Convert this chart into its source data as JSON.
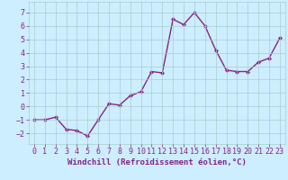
{
  "x": [
    0,
    1,
    2,
    3,
    4,
    5,
    6,
    7,
    8,
    9,
    10,
    11,
    12,
    13,
    14,
    15,
    16,
    17,
    18,
    19,
    20,
    21,
    22,
    23
  ],
  "y": [
    -1.0,
    -1.0,
    -0.8,
    -1.7,
    -1.8,
    -2.2,
    -1.0,
    0.2,
    0.1,
    0.8,
    1.1,
    2.6,
    2.5,
    6.5,
    6.1,
    7.0,
    6.0,
    4.2,
    2.7,
    2.6,
    2.6,
    3.3,
    3.6,
    5.1
  ],
  "line_color": "#882288",
  "marker": "D",
  "markersize": 2.0,
  "linewidth": 1.0,
  "background_color": "#cceeff",
  "grid_color": "#aacccc",
  "xlabel": "Windchill (Refroidissement éolien,°C)",
  "xlabel_fontsize": 6.5,
  "tick_fontsize": 6.0,
  "xlim": [
    -0.5,
    23.5
  ],
  "ylim": [
    -2.8,
    7.8
  ],
  "yticks": [
    -2,
    -1,
    0,
    1,
    2,
    3,
    4,
    5,
    6,
    7
  ],
  "xticks": [
    0,
    1,
    2,
    3,
    4,
    5,
    6,
    7,
    8,
    9,
    10,
    11,
    12,
    13,
    14,
    15,
    16,
    17,
    18,
    19,
    20,
    21,
    22,
    23
  ]
}
